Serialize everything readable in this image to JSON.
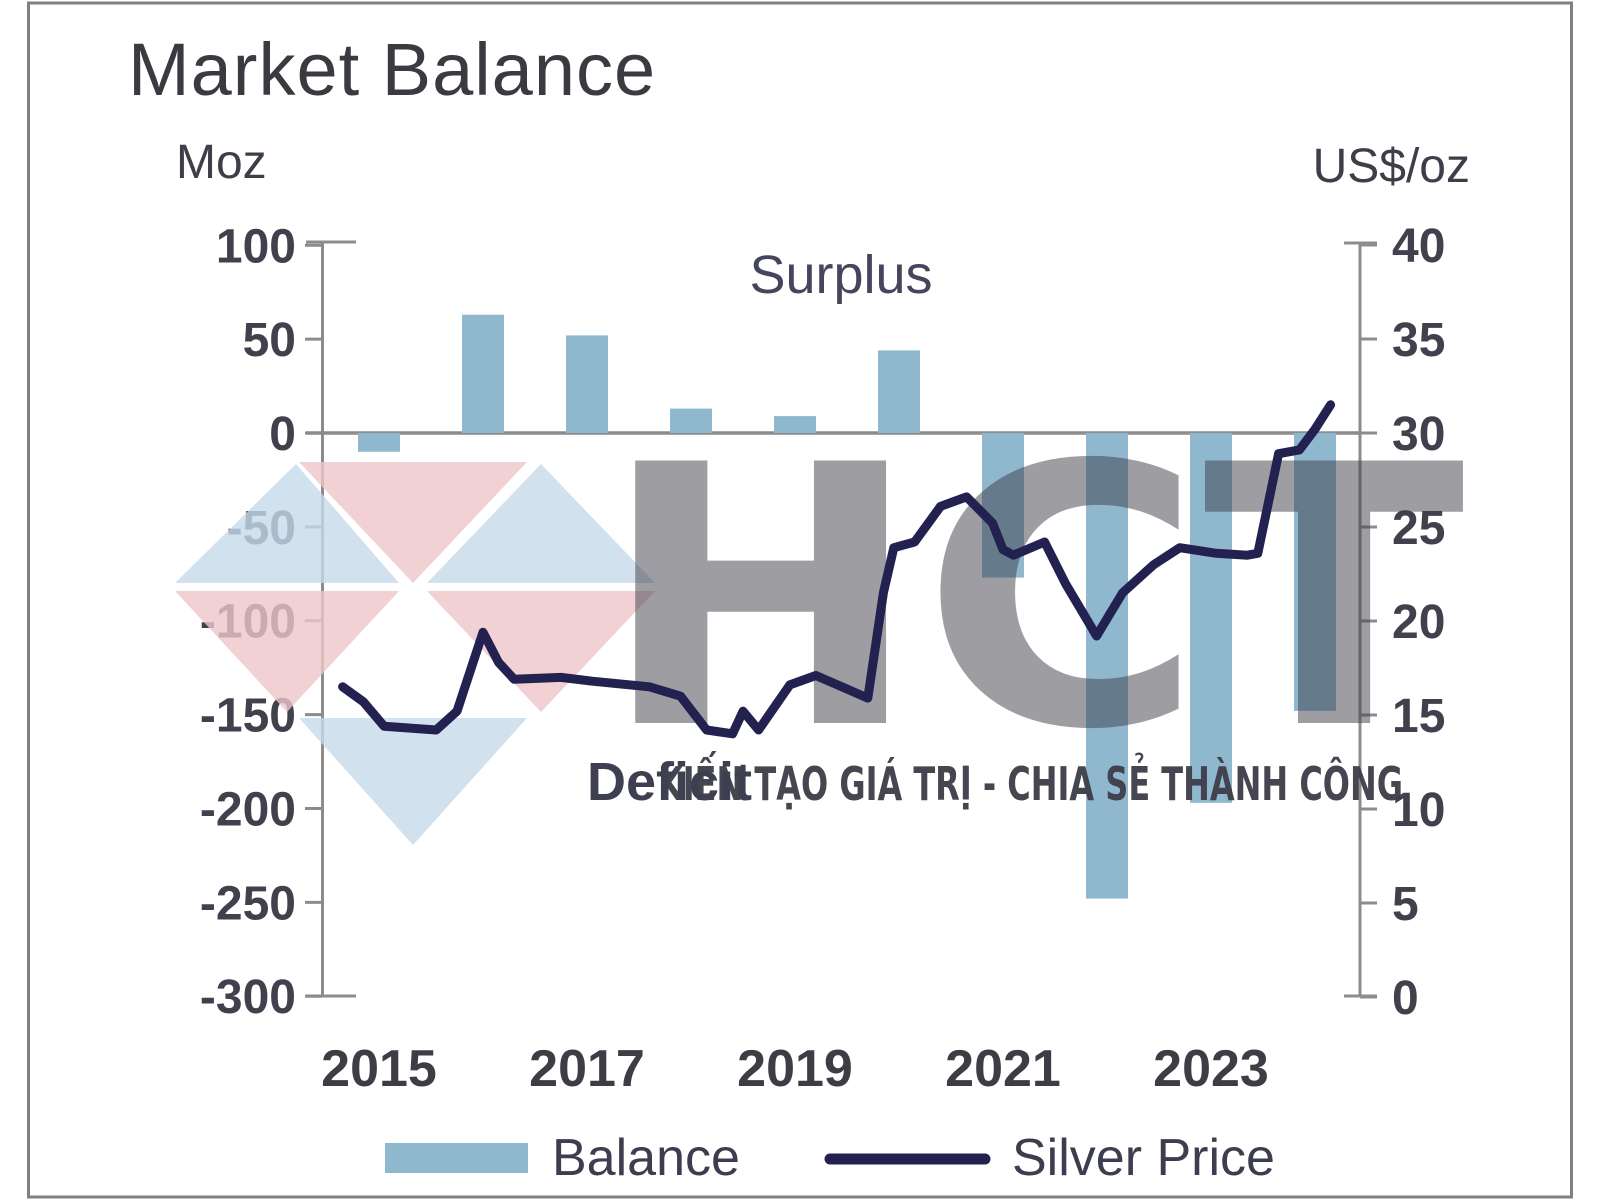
{
  "title": "Market Balance",
  "left_axis": {
    "unit": "Moz",
    "ticks": [
      "100",
      "50",
      "0",
      "-50",
      "-100",
      "-150",
      "-200",
      "-250",
      "-300"
    ]
  },
  "right_axis": {
    "unit": "US$/oz",
    "ticks": [
      "40",
      "35",
      "30",
      "25",
      "20",
      "15",
      "10",
      "5",
      "0"
    ]
  },
  "x_axis": {
    "labels": [
      "2015",
      "2017",
      "2019",
      "2021",
      "2023"
    ]
  },
  "annotations": {
    "surplus": "Surplus",
    "deficit": "Deficit"
  },
  "legend": {
    "balance": "Balance",
    "silver_price": "Silver Price"
  },
  "watermark": {
    "letters": "HCT",
    "tagline": "KIẾN TẠO GIÁ TRỊ - CHIA SẺ THÀNH CÔNG"
  },
  "colors": {
    "bar": "#8fb8cf",
    "line": "#23214f",
    "axis": "#8c8c8c",
    "frame": "#7f7f7f",
    "watermark_blue": "#c7daea",
    "watermark_red": "#efc5c9",
    "watermark_letters": "#aecbe5",
    "watermark_tagline": "#d6cfcf"
  },
  "chart_data": {
    "type": "bar+line",
    "title": "Market Balance",
    "left_ylabel": "Moz",
    "right_ylabel": "US$/oz",
    "left_ylim": [
      -300,
      100
    ],
    "right_ylim": [
      0,
      40
    ],
    "grid": false,
    "legend_position": "bottom",
    "annotations": [
      "Surplus above zero line",
      "Deficit below zero line"
    ],
    "balance": {
      "name": "Balance",
      "unit": "Moz",
      "axis": "left",
      "years": [
        2015,
        2016,
        2017,
        2018,
        2019,
        2020,
        2021,
        2022,
        2023,
        2024
      ],
      "values": [
        -10,
        63,
        52,
        13,
        9,
        44,
        -77,
        -248,
        -197,
        -148
      ]
    },
    "silver_price": {
      "name": "Silver Price",
      "unit": "US$/oz",
      "axis": "right",
      "points": [
        [
          2015.15,
          16.5
        ],
        [
          2015.35,
          15.7
        ],
        [
          2015.55,
          14.4
        ],
        [
          2016.05,
          14.2
        ],
        [
          2016.25,
          15.2
        ],
        [
          2016.5,
          19.4
        ],
        [
          2016.65,
          17.8
        ],
        [
          2016.8,
          16.9
        ],
        [
          2017.25,
          17.0
        ],
        [
          2017.55,
          16.8
        ],
        [
          2018.1,
          16.5
        ],
        [
          2018.4,
          16.0
        ],
        [
          2018.65,
          14.2
        ],
        [
          2018.9,
          14.0
        ],
        [
          2019.0,
          15.2
        ],
        [
          2019.15,
          14.2
        ],
        [
          2019.45,
          16.6
        ],
        [
          2019.7,
          17.1
        ],
        [
          2019.95,
          16.5
        ],
        [
          2020.2,
          15.9
        ],
        [
          2020.35,
          21.5
        ],
        [
          2020.45,
          23.9
        ],
        [
          2020.65,
          24.2
        ],
        [
          2020.9,
          26.1
        ],
        [
          2021.15,
          26.6
        ],
        [
          2021.4,
          25.2
        ],
        [
          2021.5,
          23.8
        ],
        [
          2021.6,
          23.5
        ],
        [
          2021.9,
          24.2
        ],
        [
          2022.1,
          22.0
        ],
        [
          2022.4,
          19.2
        ],
        [
          2022.65,
          21.5
        ],
        [
          2022.95,
          23.0
        ],
        [
          2023.2,
          23.9
        ],
        [
          2023.55,
          23.6
        ],
        [
          2023.85,
          23.5
        ],
        [
          2023.95,
          23.6
        ],
        [
          2024.15,
          28.9
        ],
        [
          2024.35,
          29.1
        ],
        [
          2024.5,
          30.2
        ],
        [
          2024.65,
          31.5
        ]
      ]
    }
  }
}
